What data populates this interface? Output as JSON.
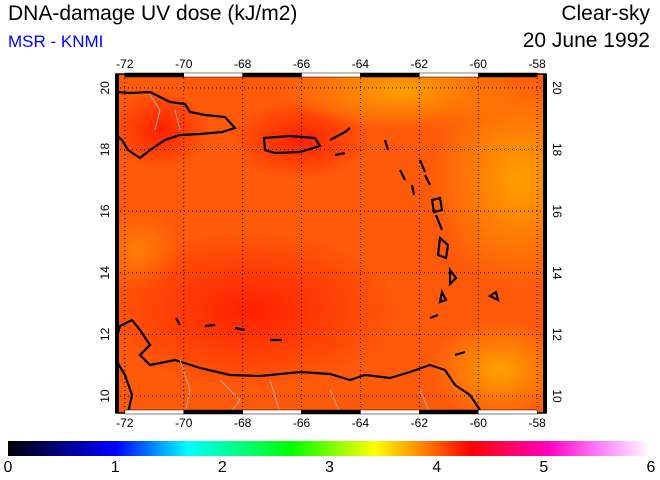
{
  "header": {
    "title": "DNA-damage UV dose (kJ/m2)",
    "source": "MSR - KNMI",
    "sky": "Clear-sky",
    "date": "20 June 1992"
  },
  "map": {
    "lon_ticks": [
      "-72",
      "-70",
      "-68",
      "-66",
      "-64",
      "-62",
      "-60",
      "-58"
    ],
    "lat_ticks": [
      "10",
      "12",
      "14",
      "16",
      "18",
      "20"
    ],
    "lon_range": [
      -72.3,
      -57.7
    ],
    "lat_range": [
      9.45,
      20.45
    ],
    "field_range_kJm2": [
      3.7,
      4.5
    ]
  },
  "colorbar": {
    "labels": [
      "0",
      "1",
      "2",
      "3",
      "4",
      "5",
      "6"
    ],
    "min": 0,
    "max": 6
  }
}
